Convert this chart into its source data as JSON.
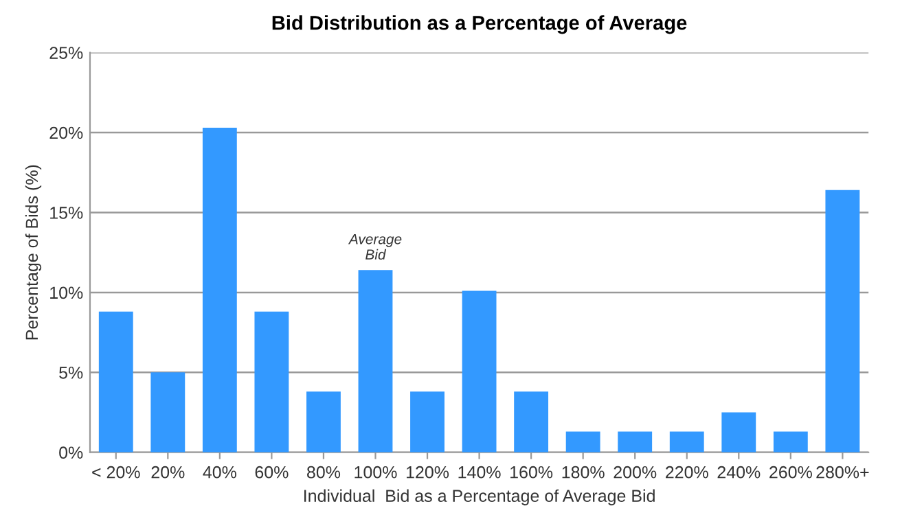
{
  "chart_data": {
    "type": "bar",
    "title": "Bid Distribution as a Percentage of Average",
    "xlabel": "Individual  Bid as a Percentage of Average Bid",
    "ylabel": "Percentage of Bids (%)",
    "categories": [
      "< 20%",
      "20%",
      "40%",
      "60%",
      "80%",
      "100%",
      "120%",
      "140%",
      "160%",
      "180%",
      "200%",
      "220%",
      "240%",
      "260%",
      "280%+"
    ],
    "values": [
      8.8,
      5.0,
      20.3,
      8.8,
      3.8,
      11.4,
      3.8,
      10.1,
      3.8,
      1.3,
      1.3,
      1.3,
      2.5,
      1.3,
      16.4
    ],
    "color": "#3399ff",
    "ylim": [
      0,
      25
    ],
    "yticks": [
      {
        "value": 0,
        "label": "0%"
      },
      {
        "value": 5,
        "label": "5%"
      },
      {
        "value": 10,
        "label": "10%"
      },
      {
        "value": 15,
        "label": "15%"
      },
      {
        "value": 20,
        "label": "20%"
      },
      {
        "value": 25,
        "label": "25%"
      }
    ],
    "grid": "y",
    "annotations": [
      {
        "text": "Average\nBid",
        "x": "100%",
        "y": 11.4
      }
    ]
  }
}
